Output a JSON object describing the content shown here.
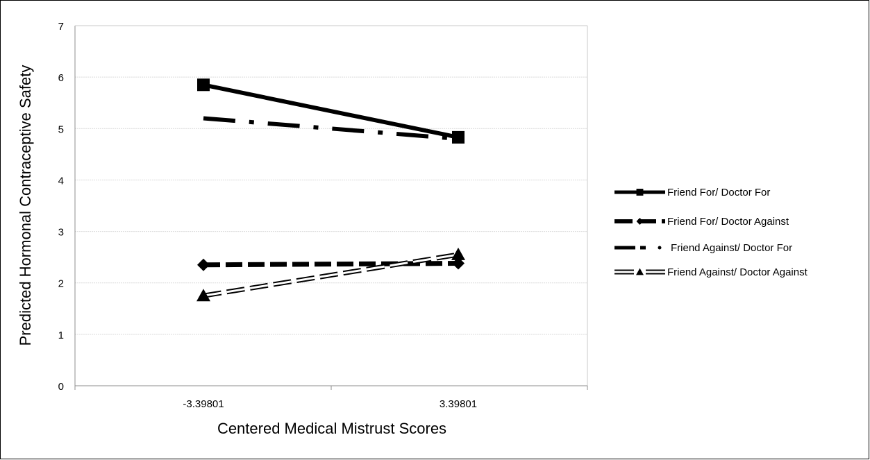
{
  "chart_data": {
    "type": "line",
    "title": "",
    "xlabel": "Centered Medical Mistrust Scores",
    "ylabel": "Predicted Hormonal Contraceptive Safety",
    "categories": [
      "-3.39801",
      "3.39801"
    ],
    "ylim": [
      0,
      7
    ],
    "yticks": [
      0,
      1,
      2,
      3,
      4,
      5,
      6,
      7
    ],
    "grid": "horizontal",
    "legend_position": "right",
    "series": [
      {
        "name": "Friend For/ Doctor For",
        "values": [
          5.85,
          4.83
        ],
        "marker": "square",
        "style": "solid",
        "color": "#000000"
      },
      {
        "name": "Friend For/ Doctor Against",
        "values": [
          2.35,
          2.38
        ],
        "marker": "diamond",
        "style": "dashed",
        "color": "#000000"
      },
      {
        "name": "Friend Against/ Doctor For",
        "values": [
          5.2,
          4.8
        ],
        "marker": "none",
        "style": "dash-dot",
        "color": "#000000"
      },
      {
        "name": "Friend Against/ Doctor Against",
        "values": [
          1.75,
          2.55
        ],
        "marker": "triangle",
        "style": "double-dashed",
        "color": "#000000"
      }
    ]
  }
}
